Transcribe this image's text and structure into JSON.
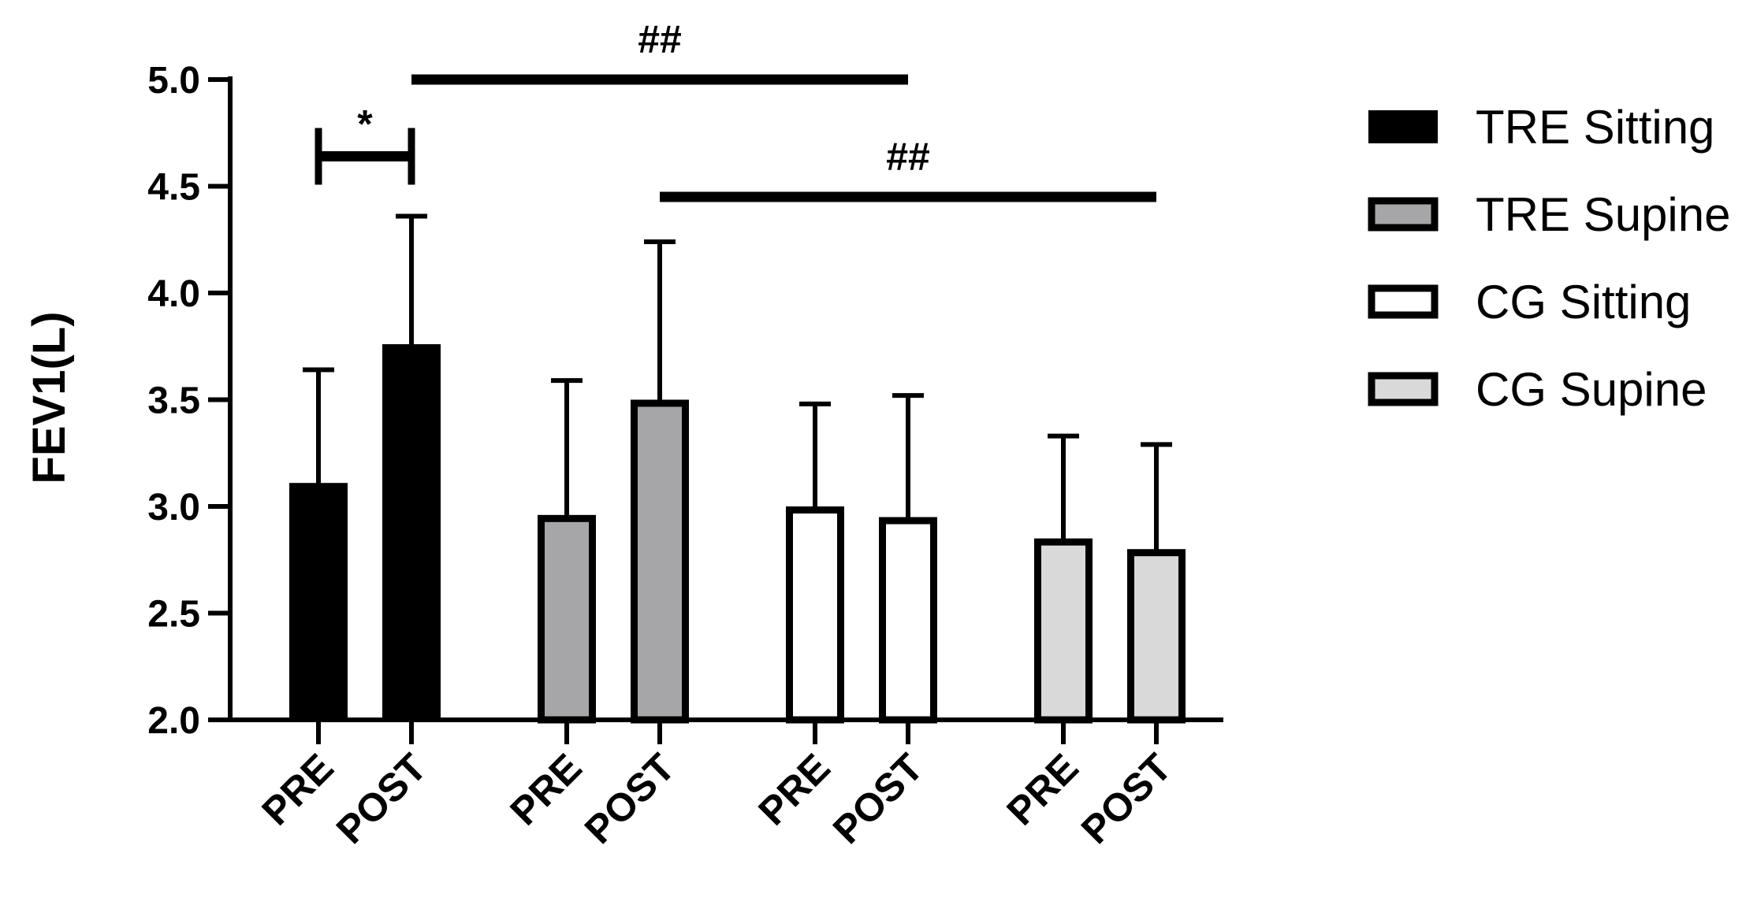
{
  "chart_data": {
    "type": "bar",
    "ylabel": "FEV1(L)",
    "xlabel": "",
    "ylim": [
      2.0,
      5.0
    ],
    "yticks": [
      "2.0",
      "2.5",
      "3.0",
      "3.5",
      "4.0",
      "4.5",
      "5.0"
    ],
    "categories": [
      "PRE",
      "POST"
    ],
    "grid": false,
    "legend_position": "right",
    "series": [
      {
        "name": "TRE Sitting",
        "values": [
          3.11,
          3.76
        ],
        "errors": [
          0.53,
          0.6
        ],
        "fill": "#000000"
      },
      {
        "name": "TRE Supine",
        "values": [
          2.96,
          3.5
        ],
        "errors": [
          0.63,
          0.74
        ],
        "fill": "#a6a6a8"
      },
      {
        "name": "CG Sitting",
        "values": [
          3.0,
          2.95
        ],
        "errors": [
          0.48,
          0.57
        ],
        "fill": "#ffffff"
      },
      {
        "name": "CG Supine",
        "values": [
          2.85,
          2.8
        ],
        "errors": [
          0.48,
          0.49
        ],
        "fill": "#d9d9d9"
      }
    ],
    "annotations": [
      {
        "text": "*",
        "from": {
          "series": 0,
          "category": 0
        },
        "to": {
          "series": 0,
          "category": 1
        },
        "y": 4.64
      },
      {
        "text": "##",
        "from": {
          "series": 0,
          "category": 1
        },
        "to": {
          "series": 2,
          "category": 1
        },
        "y": 5.0
      },
      {
        "text": "##",
        "from": {
          "series": 1,
          "category": 1
        },
        "to": {
          "series": 3,
          "category": 1
        },
        "y": 4.45
      }
    ]
  }
}
